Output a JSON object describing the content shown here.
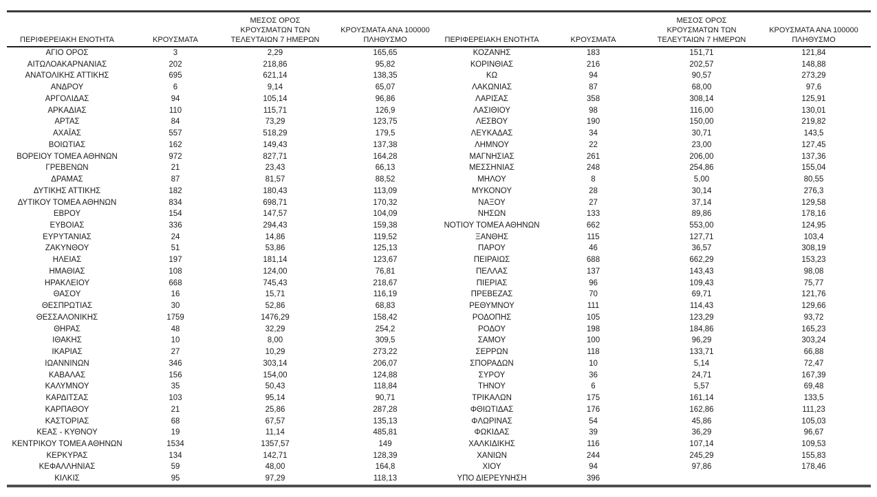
{
  "page": {
    "background": "#ffffff",
    "text_color": "#1a1a1a",
    "rule_color": "#3a3a3a"
  },
  "chart_data": {
    "type": "table",
    "columns": [
      "ΠΕΡΙΦΕΡΕΙΑΚΗ ΕΝΟΤΗΤΑ",
      "ΚΡΟΥΣΜΑΤΑ",
      "ΜΕΣΟΣ ΟΡΟΣ ΚΡΟΥΣΜΑΤΩΝ ΤΩΝ ΤΕΛΕΥΤΑΙΩΝ 7 ΗΜΕΡΩΝ",
      "ΚΡΟΥΣΜΑΤΑ ΑΝΑ 100000 ΠΛΗΘΥΣΜΟ"
    ],
    "header_lines": [
      [
        "ΠΕΡΙΦΕΡΕΙΑΚΗ ΕΝΟΤΗΤΑ"
      ],
      [
        "ΚΡΟΥΣΜΑΤΑ"
      ],
      [
        "ΜΕΣΟΣ ΟΡΟΣ",
        "ΚΡΟΥΣΜΑΤΩΝ ΤΩΝ",
        "ΤΕΛΕΥΤΑΙΩΝ 7 ΗΜΕΡΩΝ"
      ],
      [
        "ΚΡΟΥΣΜΑΤΑ ΑΝΑ 100000",
        "ΠΛΗΘΥΣΜΟ"
      ]
    ],
    "left_rows": [
      [
        "ΑΓΙΟ ΟΡΟΣ",
        "3",
        "2,29",
        "165,65"
      ],
      [
        "ΑΙΤΩΛΟΑΚΑΡΝΑΝΙΑΣ",
        "202",
        "218,86",
        "95,82"
      ],
      [
        "ΑΝΑΤΟΛΙΚΗΣ ΑΤΤΙΚΗΣ",
        "695",
        "621,14",
        "138,35"
      ],
      [
        "ΑΝΔΡΟΥ",
        "6",
        "9,14",
        "65,07"
      ],
      [
        "ΑΡΓΟΛΙΔΑΣ",
        "94",
        "105,14",
        "96,86"
      ],
      [
        "ΑΡΚΑΔΙΑΣ",
        "110",
        "115,71",
        "126,9"
      ],
      [
        "ΑΡΤΑΣ",
        "84",
        "73,29",
        "123,75"
      ],
      [
        "ΑΧΑΪΑΣ",
        "557",
        "518,29",
        "179,5"
      ],
      [
        "ΒΟΙΩΤΙΑΣ",
        "162",
        "149,43",
        "137,38"
      ],
      [
        "ΒΟΡΕΙΟΥ ΤΟΜΕΑ ΑΘΗΝΩΝ",
        "972",
        "827,71",
        "164,28"
      ],
      [
        "ΓΡΕΒΕΝΩΝ",
        "21",
        "23,43",
        "66,13"
      ],
      [
        "ΔΡΑΜΑΣ",
        "87",
        "81,57",
        "88,52"
      ],
      [
        "ΔΥΤΙΚΗΣ ΑΤΤΙΚΗΣ",
        "182",
        "180,43",
        "113,09"
      ],
      [
        "ΔΥΤΙΚΟΥ ΤΟΜΕΑ ΑΘΗΝΩΝ",
        "834",
        "698,71",
        "170,32"
      ],
      [
        "ΕΒΡΟΥ",
        "154",
        "147,57",
        "104,09"
      ],
      [
        "ΕΥΒΟΙΑΣ",
        "336",
        "294,43",
        "159,38"
      ],
      [
        "ΕΥΡΥΤΑΝΙΑΣ",
        "24",
        "14,86",
        "119,52"
      ],
      [
        "ΖΑΚΥΝΘΟΥ",
        "51",
        "53,86",
        "125,13"
      ],
      [
        "ΗΛΕΙΑΣ",
        "197",
        "181,14",
        "123,67"
      ],
      [
        "ΗΜΑΘΙΑΣ",
        "108",
        "124,00",
        "76,81"
      ],
      [
        "ΗΡΑΚΛΕΙΟΥ",
        "668",
        "745,43",
        "218,67"
      ],
      [
        "ΘΑΣΟΥ",
        "16",
        "15,71",
        "116,19"
      ],
      [
        "ΘΕΣΠΡΩΤΙΑΣ",
        "30",
        "52,86",
        "68,83"
      ],
      [
        "ΘΕΣΣΑΛΟΝΙΚΗΣ",
        "1759",
        "1476,29",
        "158,42"
      ],
      [
        "ΘΗΡΑΣ",
        "48",
        "32,29",
        "254,2"
      ],
      [
        "ΙΘΑΚΗΣ",
        "10",
        "8,00",
        "309,5"
      ],
      [
        "ΙΚΑΡΙΑΣ",
        "27",
        "10,29",
        "273,22"
      ],
      [
        "ΙΩΑΝΝΙΝΩΝ",
        "346",
        "303,14",
        "206,07"
      ],
      [
        "ΚΑΒΑΛΑΣ",
        "156",
        "154,00",
        "124,88"
      ],
      [
        "ΚΑΛΥΜΝΟΥ",
        "35",
        "50,43",
        "118,84"
      ],
      [
        "ΚΑΡΔΙΤΣΑΣ",
        "103",
        "95,14",
        "90,71"
      ],
      [
        "ΚΑΡΠΑΘΟΥ",
        "21",
        "25,86",
        "287,28"
      ],
      [
        "ΚΑΣΤΟΡΙΑΣ",
        "68",
        "67,57",
        "135,13"
      ],
      [
        "ΚΕΑΣ - ΚΥΘΝΟΥ",
        "19",
        "11,14",
        "485,81"
      ],
      [
        "ΚΕΝΤΡΙΚΟΥ ΤΟΜΕΑ ΑΘΗΝΩΝ",
        "1534",
        "1357,57",
        "149"
      ],
      [
        "ΚΕΡΚΥΡΑΣ",
        "134",
        "142,71",
        "128,39"
      ],
      [
        "ΚΕΦΑΛΛΗΝΙΑΣ",
        "59",
        "48,00",
        "164,8"
      ],
      [
        "ΚΙΛΚΙΣ",
        "95",
        "97,29",
        "118,13"
      ]
    ],
    "right_rows": [
      [
        "ΚΟΖΑΝΗΣ",
        "183",
        "151,71",
        "121,84"
      ],
      [
        "ΚΟΡΙΝΘΙΑΣ",
        "216",
        "202,57",
        "148,88"
      ],
      [
        "ΚΩ",
        "94",
        "90,57",
        "273,29"
      ],
      [
        "ΛΑΚΩΝΙΑΣ",
        "87",
        "68,00",
        "97,6"
      ],
      [
        "ΛΑΡΙΣΑΣ",
        "358",
        "308,14",
        "125,91"
      ],
      [
        "ΛΑΣΙΘΙΟΥ",
        "98",
        "116,00",
        "130,01"
      ],
      [
        "ΛΕΣΒΟΥ",
        "190",
        "150,00",
        "219,82"
      ],
      [
        "ΛΕΥΚΑΔΑΣ",
        "34",
        "30,71",
        "143,5"
      ],
      [
        "ΛΗΜΝΟΥ",
        "22",
        "23,00",
        "127,45"
      ],
      [
        "ΜΑΓΝΗΣΙΑΣ",
        "261",
        "206,00",
        "137,36"
      ],
      [
        "ΜΕΣΣΗΝΙΑΣ",
        "248",
        "254,86",
        "155,04"
      ],
      [
        "ΜΗΛΟΥ",
        "8",
        "5,00",
        "80,55"
      ],
      [
        "ΜΥΚΟΝΟΥ",
        "28",
        "30,14",
        "276,3"
      ],
      [
        "ΝΑΞΟΥ",
        "27",
        "37,14",
        "129,58"
      ],
      [
        "ΝΗΣΩΝ",
        "133",
        "89,86",
        "178,16"
      ],
      [
        "ΝΟΤΙΟΥ ΤΟΜΕΑ ΑΘΗΝΩΝ",
        "662",
        "553,00",
        "124,95"
      ],
      [
        "ΞΑΝΘΗΣ",
        "115",
        "127,71",
        "103,4"
      ],
      [
        "ΠΑΡΟΥ",
        "46",
        "36,57",
        "308,19"
      ],
      [
        "ΠΕΙΡΑΙΩΣ",
        "688",
        "662,29",
        "153,23"
      ],
      [
        "ΠΕΛΛΑΣ",
        "137",
        "143,43",
        "98,08"
      ],
      [
        "ΠΙΕΡΙΑΣ",
        "96",
        "109,43",
        "75,77"
      ],
      [
        "ΠΡΕΒΕΖΑΣ",
        "70",
        "69,71",
        "121,76"
      ],
      [
        "ΡΕΘΥΜΝΟΥ",
        "111",
        "114,43",
        "129,66"
      ],
      [
        "ΡΟΔΟΠΗΣ",
        "105",
        "123,29",
        "93,72"
      ],
      [
        "ΡΟΔΟΥ",
        "198",
        "184,86",
        "165,23"
      ],
      [
        "ΣΑΜΟΥ",
        "100",
        "96,29",
        "303,24"
      ],
      [
        "ΣΕΡΡΩΝ",
        "118",
        "133,71",
        "66,88"
      ],
      [
        "ΣΠΟΡΑΔΩΝ",
        "10",
        "5,14",
        "72,47"
      ],
      [
        "ΣΥΡΟΥ",
        "36",
        "24,71",
        "167,39"
      ],
      [
        "ΤΗΝΟΥ",
        "6",
        "5,57",
        "69,48"
      ],
      [
        "ΤΡΙΚΑΛΩΝ",
        "175",
        "161,14",
        "133,5"
      ],
      [
        "ΦΘΙΩΤΙΔΑΣ",
        "176",
        "162,86",
        "111,23"
      ],
      [
        "ΦΛΩΡΙΝΑΣ",
        "54",
        "45,86",
        "105,03"
      ],
      [
        "ΦΩΚΙΔΑΣ",
        "39",
        "36,29",
        "96,67"
      ],
      [
        "ΧΑΛΚΙΔΙΚΗΣ",
        "116",
        "107,14",
        "109,53"
      ],
      [
        "ΧΑΝΙΩΝ",
        "244",
        "245,29",
        "155,83"
      ],
      [
        "ΧΙΟΥ",
        "94",
        "97,86",
        "178,46"
      ],
      [
        "ΥΠΟ ΔΙΕΡΕΥΝΗΣΗ",
        "396",
        "",
        ""
      ]
    ]
  }
}
